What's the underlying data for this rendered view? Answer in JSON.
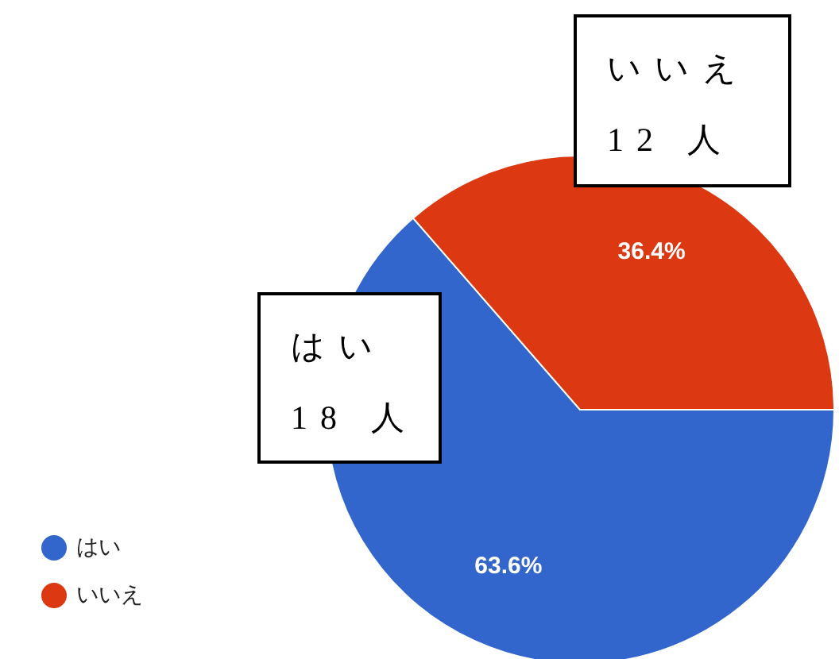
{
  "chart_data": {
    "type": "pie",
    "categories": [
      "はい",
      "いいえ"
    ],
    "values": [
      63.6,
      36.4
    ],
    "value_labels": [
      "63.6%",
      "36.4%"
    ],
    "colors": [
      "#3366cc",
      "#dc3912"
    ],
    "legend": "bottom left",
    "annotations": [
      "はい\n18 人",
      "いいえ\n12 人"
    ]
  }
}
